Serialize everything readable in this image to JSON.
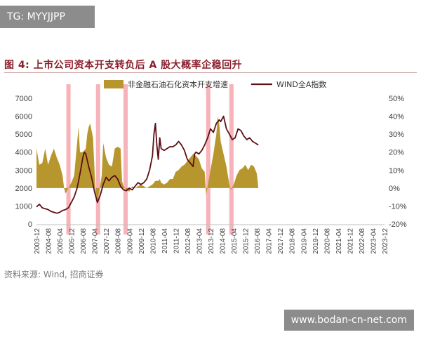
{
  "badges": {
    "tg": "TG: MYYJJPP",
    "website": "www.bodan-cn-net.com"
  },
  "title": "图 4: 上市公司资本开支转负后 A 股大概率企稳回升",
  "source": "资料来源: Wind, 招商证券",
  "colors": {
    "bar_series": "#b8962e",
    "line_series": "#5c0f14",
    "highlight": "#f4a6ad",
    "title": "#8a1f2b",
    "axis_text": "#404040"
  },
  "chart_data": {
    "type": "area",
    "legend_position": "top",
    "grid": false,
    "categories": [
      "2003-12",
      "2004-08",
      "2005-04",
      "2005-12",
      "2006-08",
      "2007-04",
      "2007-12",
      "2008-08",
      "2009-04",
      "2009-12",
      "2010-08",
      "2011-04",
      "2011-12",
      "2012-08",
      "2013-04",
      "2013-12",
      "2014-08",
      "2015-04",
      "2015-12",
      "2016-08",
      "2017-04",
      "2017-12",
      "2018-08",
      "2019-04",
      "2019-12",
      "2020-08",
      "2021-04",
      "2021-12",
      "2022-08",
      "2023-04",
      "2023-12"
    ],
    "left_axis": {
      "ticks": [
        "7000",
        "6000",
        "5000",
        "4000",
        "3000",
        "2000",
        "1000",
        "0"
      ],
      "min": 0,
      "max": 7000
    },
    "right_axis": {
      "ticks": [
        "50%",
        "40%",
        "30%",
        "20%",
        "10%",
        "0%",
        "-10%",
        "-20%"
      ],
      "min": -20,
      "max": 50
    },
    "highlight_periods": [
      {
        "start": 20.6,
        "end": 21.6
      },
      {
        "start": 41.0,
        "end": 42.0
      },
      {
        "start": 60.0,
        "end": 61.0
      },
      {
        "start": 117.0,
        "end": 118.0
      },
      {
        "start": 133.0,
        "end": 134.0
      }
    ],
    "series": [
      {
        "name": "非金融石油石化资本开支增速",
        "axis": "right",
        "style": "area",
        "points": [
          [
            0,
            22
          ],
          [
            2,
            13
          ],
          [
            4,
            14
          ],
          [
            6,
            22
          ],
          [
            8,
            13
          ],
          [
            10,
            18
          ],
          [
            12,
            22
          ],
          [
            14,
            17
          ],
          [
            16,
            13
          ],
          [
            18,
            7
          ],
          [
            19,
            0
          ],
          [
            20,
            -3
          ],
          [
            22,
            0
          ],
          [
            24,
            3
          ],
          [
            26,
            7
          ],
          [
            28,
            25
          ],
          [
            29,
            34
          ],
          [
            30,
            20
          ],
          [
            32,
            20
          ],
          [
            34,
            22
          ],
          [
            35,
            30
          ],
          [
            36,
            34
          ],
          [
            37,
            36
          ],
          [
            38,
            32
          ],
          [
            39,
            28
          ],
          [
            40,
            10
          ],
          [
            41,
            -7
          ],
          [
            42,
            -8
          ],
          [
            43,
            -3
          ],
          [
            45,
            7
          ],
          [
            46,
            25
          ],
          [
            48,
            17
          ],
          [
            50,
            13
          ],
          [
            52,
            12
          ],
          [
            54,
            22
          ],
          [
            56,
            23
          ],
          [
            58,
            22
          ],
          [
            59,
            4
          ],
          [
            60,
            1
          ],
          [
            62,
            -1
          ],
          [
            64,
            -2
          ],
          [
            66,
            1
          ],
          [
            68,
            0
          ],
          [
            70,
            1
          ],
          [
            72,
            2
          ],
          [
            74,
            1
          ],
          [
            76,
            0
          ],
          [
            78,
            1
          ],
          [
            80,
            2
          ],
          [
            82,
            4
          ],
          [
            84,
            4
          ],
          [
            85,
            5
          ],
          [
            86,
            3
          ],
          [
            88,
            2
          ],
          [
            90,
            3
          ],
          [
            92,
            5
          ],
          [
            94,
            5
          ],
          [
            96,
            9
          ],
          [
            98,
            10
          ],
          [
            100,
            12
          ],
          [
            102,
            13
          ],
          [
            104,
            15
          ],
          [
            106,
            17
          ],
          [
            108,
            19
          ],
          [
            110,
            18
          ],
          [
            112,
            16
          ],
          [
            114,
            11
          ],
          [
            116,
            9
          ],
          [
            117,
            -4
          ],
          [
            118,
            1
          ],
          [
            120,
            10
          ],
          [
            122,
            19
          ],
          [
            124,
            30
          ],
          [
            125,
            40
          ],
          [
            126,
            36
          ],
          [
            127,
            26
          ],
          [
            129,
            19
          ],
          [
            131,
            12
          ],
          [
            133,
            2
          ],
          [
            134,
            -1
          ],
          [
            136,
            2
          ],
          [
            138,
            7
          ],
          [
            140,
            10
          ],
          [
            142,
            11
          ],
          [
            144,
            13
          ],
          [
            146,
            10
          ],
          [
            148,
            13
          ],
          [
            150,
            12
          ],
          [
            152,
            8
          ],
          [
            153,
            0
          ]
        ]
      },
      {
        "name": "WIND全A指数",
        "axis": "left",
        "style": "line",
        "points": [
          [
            0,
            950
          ],
          [
            2,
            1100
          ],
          [
            4,
            900
          ],
          [
            6,
            850
          ],
          [
            8,
            800
          ],
          [
            10,
            700
          ],
          [
            12,
            650
          ],
          [
            14,
            600
          ],
          [
            16,
            650
          ],
          [
            18,
            750
          ],
          [
            20,
            800
          ],
          [
            22,
            900
          ],
          [
            24,
            1200
          ],
          [
            26,
            1500
          ],
          [
            28,
            2000
          ],
          [
            30,
            2800
          ],
          [
            32,
            3700
          ],
          [
            33,
            4000
          ],
          [
            34,
            3900
          ],
          [
            36,
            3200
          ],
          [
            38,
            2600
          ],
          [
            40,
            1800
          ],
          [
            42,
            1200
          ],
          [
            44,
            1600
          ],
          [
            46,
            2200
          ],
          [
            48,
            2600
          ],
          [
            50,
            2400
          ],
          [
            52,
            2600
          ],
          [
            54,
            2700
          ],
          [
            56,
            2500
          ],
          [
            58,
            2100
          ],
          [
            60,
            1900
          ],
          [
            62,
            1850
          ],
          [
            64,
            2000
          ],
          [
            66,
            1900
          ],
          [
            68,
            2100
          ],
          [
            70,
            2300
          ],
          [
            72,
            2200
          ],
          [
            74,
            2300
          ],
          [
            76,
            2500
          ],
          [
            78,
            3000
          ],
          [
            80,
            3800
          ],
          [
            81,
            5000
          ],
          [
            82,
            5600
          ],
          [
            83,
            4400
          ],
          [
            84,
            3600
          ],
          [
            85,
            4800
          ],
          [
            86,
            4200
          ],
          [
            88,
            4100
          ],
          [
            90,
            4200
          ],
          [
            92,
            4300
          ],
          [
            94,
            4300
          ],
          [
            96,
            4400
          ],
          [
            98,
            4600
          ],
          [
            100,
            4400
          ],
          [
            102,
            4100
          ],
          [
            104,
            3600
          ],
          [
            106,
            3400
          ],
          [
            108,
            3200
          ],
          [
            109,
            3900
          ],
          [
            110,
            4000
          ],
          [
            112,
            3900
          ],
          [
            114,
            4100
          ],
          [
            116,
            4400
          ],
          [
            118,
            4800
          ],
          [
            120,
            5300
          ],
          [
            122,
            5100
          ],
          [
            124,
            5600
          ],
          [
            126,
            5800
          ],
          [
            127,
            5700
          ],
          [
            129,
            6000
          ],
          [
            131,
            5300
          ],
          [
            133,
            5000
          ],
          [
            135,
            4700
          ],
          [
            137,
            4800
          ],
          [
            139,
            5300
          ],
          [
            141,
            5200
          ],
          [
            143,
            4900
          ],
          [
            145,
            4700
          ],
          [
            147,
            4800
          ],
          [
            149,
            4600
          ],
          [
            151,
            4500
          ],
          [
            153,
            4400
          ]
        ]
      }
    ]
  }
}
